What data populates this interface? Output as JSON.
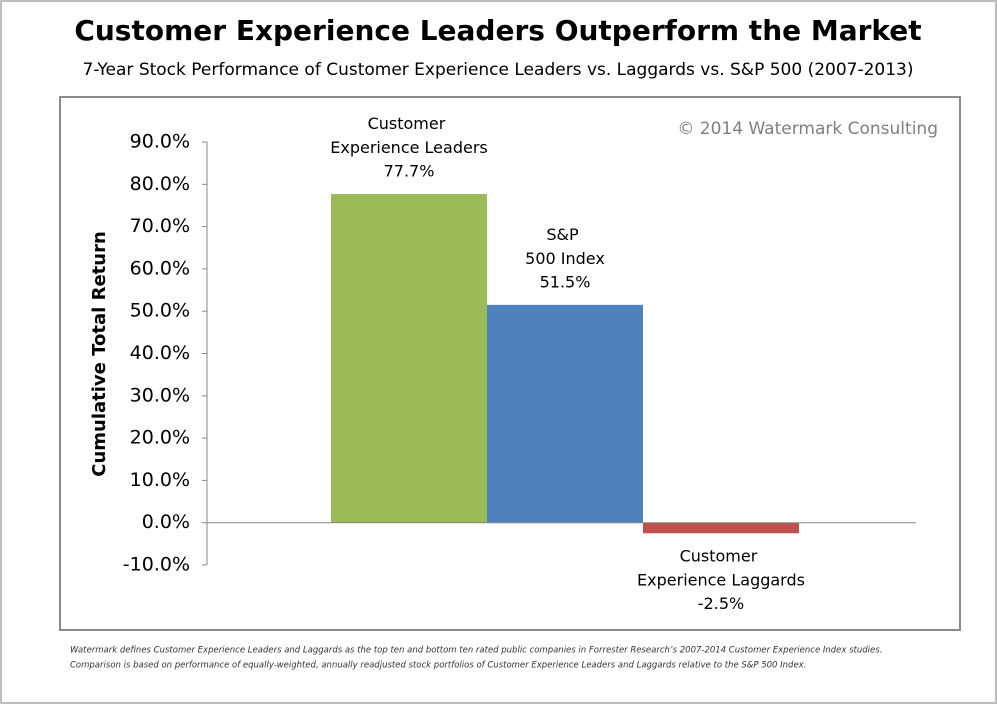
{
  "chart_data": {
    "type": "bar",
    "title": "Customer Experience Leaders Outperform the Market",
    "subtitle": "7-Year Stock Performance of Customer Experience Leaders vs. Laggards vs. S&P 500 (2007-2013)",
    "watermark": "© 2014 Watermark Consulting",
    "y_label": "Cumulative Total Return",
    "categories": [
      "Customer Experience Leaders",
      "S&P 500 Index",
      "Customer Experience Laggards"
    ],
    "values": [
      77.7,
      51.5,
      -2.5
    ],
    "value_labels": [
      "77.7%",
      "51.5%",
      "-2.5%"
    ],
    "colors": [
      "#9bbb59",
      "#4f81bd",
      "#c0504d"
    ],
    "ylim": [
      -10,
      90
    ],
    "yticks": [
      {
        "value": -10,
        "label": "-10.0%"
      },
      {
        "value": 0,
        "label": "0.0%"
      },
      {
        "value": 10,
        "label": "10.0%"
      },
      {
        "value": 20,
        "label": "20.0%"
      },
      {
        "value": 30,
        "label": "30.0%"
      },
      {
        "value": 40,
        "label": "40.0%"
      },
      {
        "value": 50,
        "label": "50.0%"
      },
      {
        "value": 60,
        "label": "60.0%"
      },
      {
        "value": 70,
        "label": "70.0%"
      },
      {
        "value": 80,
        "label": "80.0%"
      },
      {
        "value": 90,
        "label": "90.0%"
      }
    ],
    "grid": false,
    "footnote": [
      "Watermark defines Customer Experience Leaders and Laggards as the top ten and bottom ten rated public companies in Forrester Research’s 2007-2014 Customer Experience Index studies.",
      "Comparison is based on performance of equally-weighted, annually readjusted stock portfolios of Customer Experience Leaders and Laggards relative to the S&P 500 Index."
    ]
  }
}
